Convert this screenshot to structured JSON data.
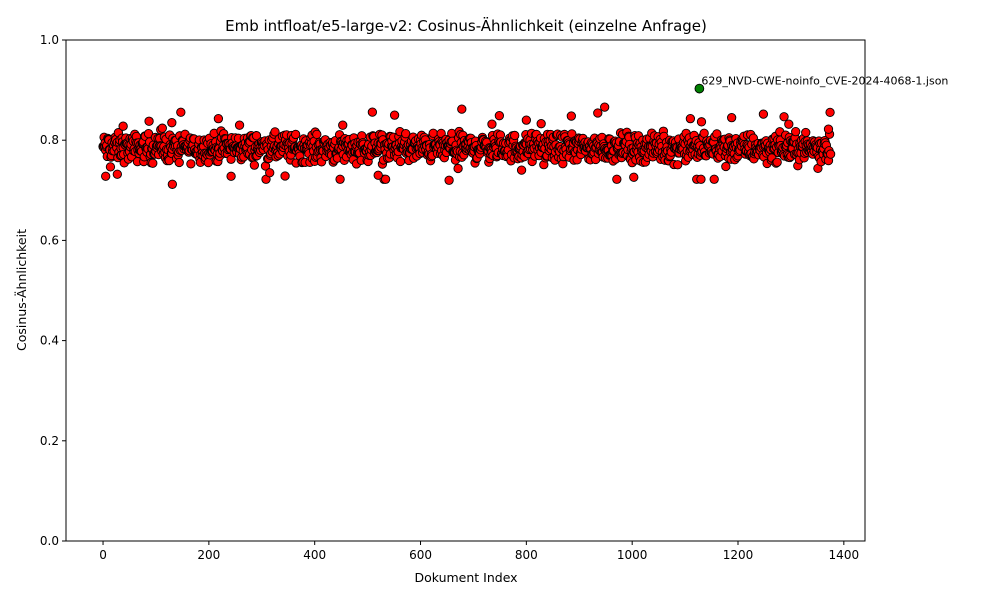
{
  "chart_data": {
    "type": "scatter",
    "title": "Emb intfloat/e5-large-v2: Cosinus-Ähnlichkeit (einzelne Anfrage)",
    "xlabel": "Dokument Index",
    "ylabel": "Cosinus-Ähnlichkeit",
    "xlim": [
      -70,
      1440
    ],
    "ylim": [
      0.0,
      1.0
    ],
    "xticks": [
      0,
      200,
      400,
      600,
      800,
      1000,
      1200,
      1400
    ],
    "yticks": [
      0.0,
      0.2,
      0.4,
      0.6,
      0.8,
      1.0
    ],
    "xtick_labels": [
      "0",
      "200",
      "400",
      "600",
      "800",
      "1000",
      "1200",
      "1400"
    ],
    "ytick_labels": [
      "0.0",
      "0.2",
      "0.4",
      "0.6",
      "0.8",
      "1.0"
    ],
    "grid": false,
    "point_count": 1376,
    "series": [
      {
        "color": "#ff0000",
        "edge_color": "#000000",
        "x_range": [
          0,
          1375
        ],
        "y_typical_range": [
          0.75,
          0.82
        ],
        "y_min": 0.712,
        "y_max": 0.866,
        "sample_points": [
          [
            5,
            0.728
          ],
          [
            27,
            0.732
          ],
          [
            38,
            0.828
          ],
          [
            131,
            0.712
          ],
          [
            130,
            0.835
          ],
          [
            218,
            0.843
          ],
          [
            242,
            0.728
          ],
          [
            258,
            0.83
          ],
          [
            453,
            0.83
          ],
          [
            520,
            0.73
          ],
          [
            551,
            0.85
          ],
          [
            654,
            0.72
          ],
          [
            678,
            0.862
          ],
          [
            735,
            0.832
          ],
          [
            800,
            0.84
          ],
          [
            828,
            0.833
          ],
          [
            948,
            0.866
          ],
          [
            1003,
            0.726
          ],
          [
            1110,
            0.843
          ],
          [
            1130,
            0.722
          ],
          [
            1188,
            0.845
          ],
          [
            1248,
            0.852
          ],
          [
            1296,
            0.832
          ],
          [
            1371,
            0.822
          ]
        ]
      },
      {
        "color": "#008000",
        "edge_color": "#000000",
        "points": [
          [
            1127,
            0.903
          ]
        ],
        "annotation": "629_NVD-CWE-noinfo_CVE-2024-4068-1.json"
      }
    ]
  }
}
